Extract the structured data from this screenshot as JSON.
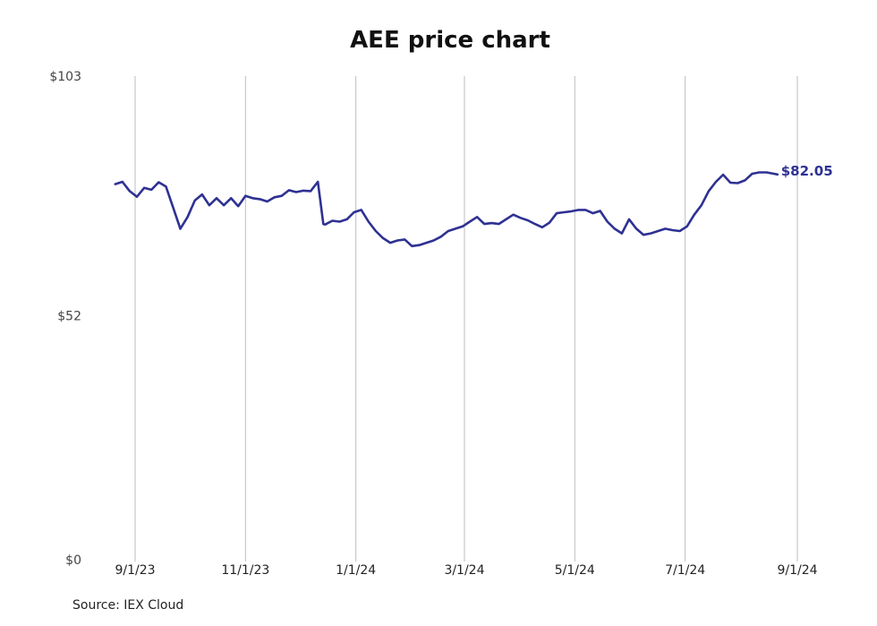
{
  "chart_data": {
    "type": "line",
    "title": "AEE price chart",
    "xlabel": "",
    "ylabel": "",
    "source": "Source: IEX Cloud",
    "y_ticks": [
      "$103",
      "$52",
      "$0"
    ],
    "y_tick_values": [
      103,
      52,
      0
    ],
    "ylim": [
      0,
      103
    ],
    "x_ticks": [
      "9/1/23",
      "11/1/23",
      "1/1/24",
      "3/1/24",
      "5/1/24",
      "7/1/24",
      "9/1/24"
    ],
    "x_tick_dates": [
      "2023-09-01",
      "2023-11-01",
      "2024-01-01",
      "2024-03-01",
      "2024-05-01",
      "2024-07-01",
      "2024-09-01"
    ],
    "grid": "vertical",
    "last_value_label": "$82.05",
    "line_color": "#2e3192",
    "series": [
      {
        "x": [
          "2023-08-21",
          "2023-08-25",
          "2023-08-29",
          "2023-09-02",
          "2023-09-06",
          "2023-09-10",
          "2023-09-14",
          "2023-09-18",
          "2023-09-22",
          "2023-09-26",
          "2023-09-30",
          "2023-10-04",
          "2023-10-08",
          "2023-10-12",
          "2023-10-16",
          "2023-10-20",
          "2023-10-24",
          "2023-10-28",
          "2023-11-01",
          "2023-11-05",
          "2023-11-09",
          "2023-11-13",
          "2023-11-17",
          "2023-11-21",
          "2023-11-25",
          "2023-11-29",
          "2023-12-03",
          "2023-12-07",
          "2023-12-11",
          "2023-12-14",
          "2023-12-15",
          "2023-12-19",
          "2023-12-23",
          "2023-12-27",
          "2023-12-31",
          "2024-01-04",
          "2024-01-08",
          "2024-01-12",
          "2024-01-16",
          "2024-01-20",
          "2024-01-24",
          "2024-01-28",
          "2024-02-01",
          "2024-02-05",
          "2024-02-09",
          "2024-02-13",
          "2024-02-17",
          "2024-02-21",
          "2024-02-25",
          "2024-02-29",
          "2024-03-04",
          "2024-03-08",
          "2024-03-12",
          "2024-03-16",
          "2024-03-20",
          "2024-03-24",
          "2024-03-28",
          "2024-04-01",
          "2024-04-05",
          "2024-04-09",
          "2024-04-13",
          "2024-04-17",
          "2024-04-21",
          "2024-04-25",
          "2024-04-29",
          "2024-05-03",
          "2024-05-07",
          "2024-05-11",
          "2024-05-15",
          "2024-05-19",
          "2024-05-23",
          "2024-05-27",
          "2024-05-31",
          "2024-06-04",
          "2024-06-08",
          "2024-06-12",
          "2024-06-16",
          "2024-06-20",
          "2024-06-24",
          "2024-06-28",
          "2024-07-02",
          "2024-07-06",
          "2024-07-10",
          "2024-07-14",
          "2024-07-18",
          "2024-07-22",
          "2024-07-26",
          "2024-07-30",
          "2024-08-03",
          "2024-08-07",
          "2024-08-11",
          "2024-08-15",
          "2024-08-19",
          "2024-08-21"
        ],
        "y": [
          80,
          80.5,
          78.5,
          77.3,
          79.2,
          78.8,
          80.4,
          79.5,
          75,
          70.5,
          73,
          76.5,
          77.8,
          75.5,
          77,
          75.5,
          77,
          75.3,
          77.5,
          77,
          76.8,
          76.3,
          77.2,
          77.5,
          78.7,
          78.3,
          78.6,
          78.5,
          80.5,
          71.5,
          71.4,
          72.2,
          72,
          72.5,
          74,
          74.5,
          72,
          70,
          68.5,
          67.5,
          68,
          68.2,
          66.8,
          67,
          67.5,
          68,
          68.8,
          70,
          70.5,
          71,
          72,
          73,
          71.5,
          71.7,
          71.5,
          72.5,
          73.5,
          72.8,
          72.3,
          71.5,
          70.8,
          71.8,
          73.8,
          74,
          74.2,
          74.5,
          74.5,
          73.8,
          74.3,
          72,
          70.5,
          69.5,
          72.5,
          70.5,
          69.2,
          69.5,
          70,
          70.5,
          70.2,
          70,
          71,
          73.5,
          75.5,
          78.5,
          80.5,
          82,
          80.3,
          80.2,
          80.8,
          82.2,
          82.5,
          82.5,
          82.2,
          82.05
        ]
      }
    ]
  }
}
